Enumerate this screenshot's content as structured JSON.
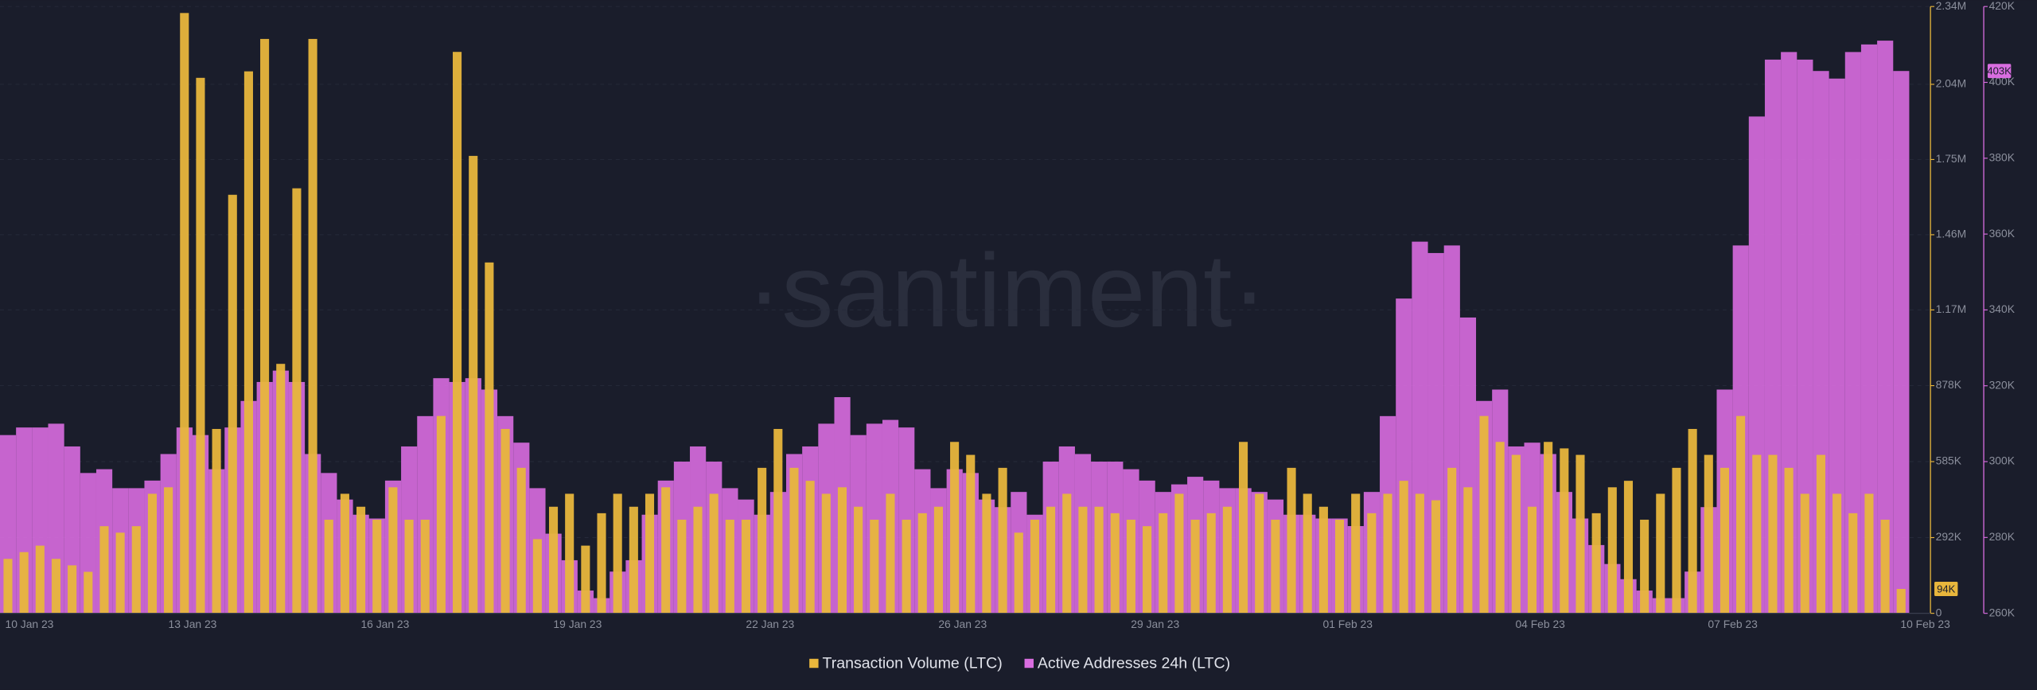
{
  "chart_data": {
    "type": "bar",
    "watermark": "·santiment·",
    "categories": [
      "10 Jan 23",
      null,
      null,
      null,
      null,
      null,
      null,
      null,
      null,
      null,
      null,
      null,
      "13 Jan 23",
      null,
      null,
      null,
      null,
      null,
      null,
      null,
      null,
      null,
      null,
      null,
      "16 Jan 23",
      null,
      null,
      null,
      null,
      null,
      null,
      null,
      null,
      null,
      null,
      null,
      "19 Jan 23",
      null,
      null,
      null,
      null,
      null,
      null,
      null,
      null,
      null,
      null,
      null,
      "22 Jan 23",
      null,
      null,
      null,
      null,
      null,
      null,
      null,
      null,
      null,
      null,
      null,
      "26 Jan 23",
      null,
      null,
      null,
      null,
      null,
      null,
      null,
      null,
      null,
      null,
      null,
      "29 Jan 23",
      null,
      null,
      null,
      null,
      null,
      null,
      null,
      null,
      null,
      null,
      null,
      "01 Feb 23",
      null,
      null,
      null,
      null,
      null,
      null,
      null,
      null,
      null,
      null,
      null,
      "04 Feb 23",
      null,
      null,
      null,
      null,
      null,
      null,
      null,
      null,
      null,
      null,
      null,
      "07 Feb 23",
      null,
      null,
      null,
      null,
      null,
      null,
      null,
      null,
      null,
      null,
      null,
      "10 Feb 23"
    ],
    "series": [
      {
        "name": "Active Addresses 24h (LTC)",
        "color": "#d96de0",
        "axis": "y2",
        "last_label": "403K",
        "values": [
          307000,
          309000,
          309000,
          310000,
          304000,
          297000,
          298000,
          293000,
          293000,
          295000,
          302000,
          309000,
          307000,
          298000,
          309000,
          316000,
          321000,
          324000,
          321000,
          302000,
          297000,
          290000,
          286000,
          285000,
          295000,
          304000,
          312000,
          322000,
          321000,
          322000,
          319000,
          312000,
          305000,
          293000,
          281000,
          274000,
          266000,
          264000,
          271000,
          274000,
          286000,
          295000,
          300000,
          304000,
          300000,
          293000,
          290000,
          286000,
          292000,
          302000,
          304000,
          310000,
          317000,
          307000,
          310000,
          311000,
          309000,
          298000,
          293000,
          298000,
          297000,
          290000,
          288000,
          292000,
          286000,
          300000,
          304000,
          302000,
          300000,
          300000,
          298000,
          295000,
          292000,
          294000,
          296000,
          295000,
          293000,
          293000,
          292000,
          290000,
          286000,
          286000,
          285000,
          285000,
          283000,
          292000,
          312000,
          343000,
          358000,
          355000,
          357000,
          338000,
          316000,
          319000,
          304000,
          305000,
          302000,
          292000,
          285000,
          278000,
          273000,
          269000,
          266000,
          264000,
          264000,
          271000,
          288000,
          319000,
          357000,
          391000,
          406000,
          408000,
          406000,
          403000,
          401000,
          408000,
          410000,
          411000,
          403000,
          null,
          null
        ]
      },
      {
        "name": "Transaction Volume (LTC)",
        "color": "#e8b63c",
        "last_label": "94K",
        "values": [
          210000,
          236000,
          261000,
          210000,
          185000,
          160000,
          336000,
          311000,
          336000,
          461000,
          486000,
          2315000,
          2065000,
          711000,
          1614000,
          2090000,
          2215000,
          962000,
          1639000,
          2215000,
          361000,
          461000,
          411000,
          361000,
          486000,
          361000,
          361000,
          761000,
          2165000,
          1764000,
          1353000,
          711000,
          561000,
          286000,
          411000,
          461000,
          261000,
          386000,
          461000,
          411000,
          461000,
          486000,
          361000,
          411000,
          461000,
          361000,
          361000,
          561000,
          711000,
          561000,
          511000,
          461000,
          486000,
          411000,
          361000,
          461000,
          361000,
          386000,
          411000,
          661000,
          611000,
          461000,
          561000,
          311000,
          361000,
          411000,
          461000,
          411000,
          411000,
          386000,
          361000,
          336000,
          386000,
          461000,
          361000,
          386000,
          411000,
          661000,
          461000,
          361000,
          561000,
          461000,
          411000,
          361000,
          461000,
          386000,
          461000,
          511000,
          461000,
          436000,
          561000,
          486000,
          761000,
          661000,
          611000,
          411000,
          661000,
          636000,
          611000,
          386000,
          486000,
          511000,
          361000,
          461000,
          561000,
          711000,
          611000,
          561000,
          761000,
          611000,
          611000,
          561000,
          461000,
          611000,
          461000,
          386000,
          461000,
          361000,
          94000,
          null,
          null
        ]
      }
    ],
    "ylim": [
      0,
      2340000
    ],
    "yticks": [
      0,
      {
        "value": 292000,
        "label": "292K"
      },
      {
        "value": 585000,
        "label": "585K"
      },
      {
        "value": 878000,
        "label": "878K"
      },
      {
        "value": 1170000,
        "label": "1.17M"
      },
      {
        "value": 1460000,
        "label": "1.46M"
      },
      {
        "value": 1750000,
        "label": "1.75M"
      },
      {
        "value": 2040000,
        "label": "2.04M"
      },
      {
        "value": 2340000,
        "label": "2.34M"
      }
    ],
    "y2lim": [
      260000,
      420000
    ],
    "y2ticks": [
      {
        "value": 260000,
        "label": "260K"
      },
      {
        "value": 280000,
        "label": "280K"
      },
      {
        "value": 300000,
        "label": "300K"
      },
      {
        "value": 320000,
        "label": "320K"
      },
      {
        "value": 340000,
        "label": "340K"
      },
      {
        "value": 360000,
        "label": "360K"
      },
      {
        "value": 380000,
        "label": "380K"
      },
      {
        "value": 400000,
        "label": "400K"
      },
      {
        "value": 420000,
        "label": "420K"
      }
    ],
    "grid": true
  }
}
